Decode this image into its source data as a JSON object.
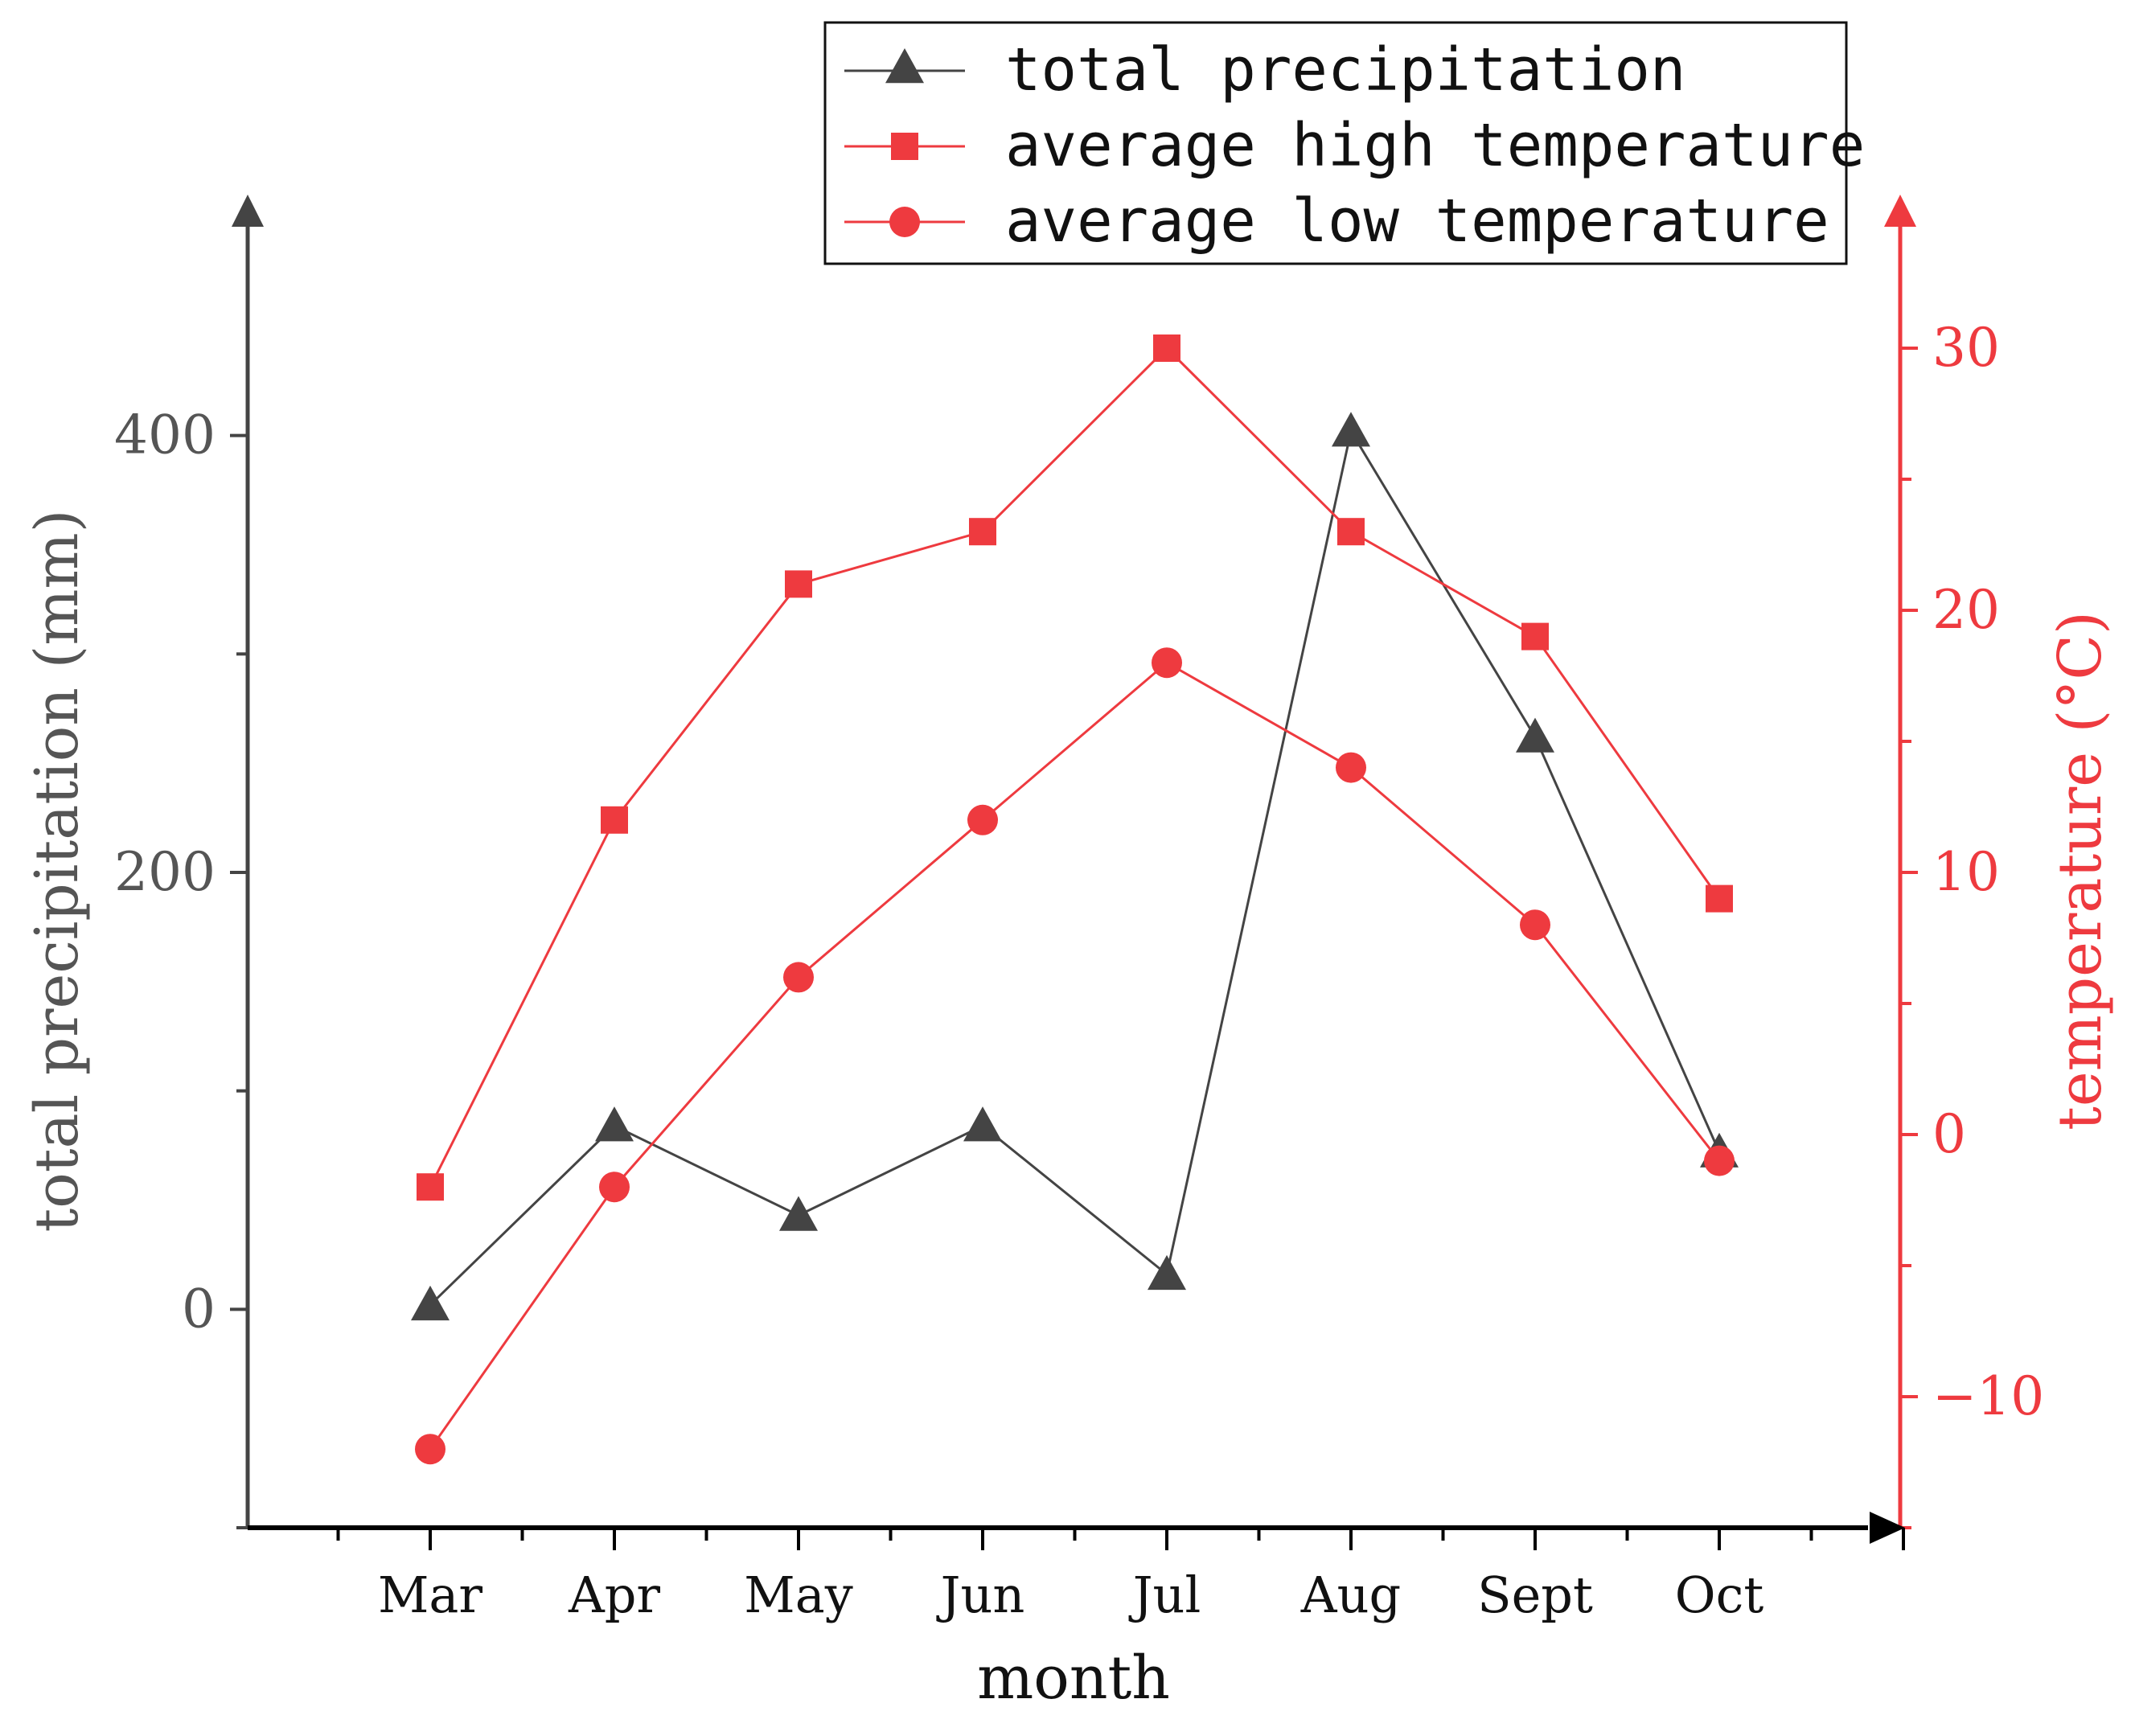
{
  "chart_data": {
    "type": "line",
    "categories": [
      "Mar",
      "Apr",
      "May",
      "Jun",
      "Jul",
      "Aug",
      "Sept",
      "Oct"
    ],
    "xlabel": "month",
    "ylabel_left": "total precipitation (mm)",
    "ylabel_right": "temperature (°C)",
    "ylim_left": [
      -100,
      500
    ],
    "ylim_right": [
      -15,
      35
    ],
    "yticks_left": [
      0,
      200,
      400
    ],
    "yticks_left_labels": [
      "0",
      "200",
      "400"
    ],
    "yticks_right": [
      -10,
      0,
      10,
      20,
      30
    ],
    "yticks_right_labels": [
      "−10",
      "0",
      "10",
      "20",
      "30"
    ],
    "legend_position": "top-right",
    "series": [
      {
        "name": "total precipitation",
        "axis": "left",
        "marker": "triangle",
        "color": "#444444",
        "values": [
          2,
          84,
          43,
          84,
          16,
          402,
          262,
          72
        ]
      },
      {
        "name": "average high temperature",
        "axis": "right",
        "marker": "square",
        "color": "#ee3a3f",
        "values": [
          -2,
          12,
          21,
          23,
          30,
          23,
          19,
          9
        ]
      },
      {
        "name": "average low temperature",
        "axis": "right",
        "marker": "circle",
        "color": "#ee3a3f",
        "values": [
          -12,
          -2,
          6,
          12,
          18,
          14,
          8,
          -1
        ]
      }
    ]
  }
}
